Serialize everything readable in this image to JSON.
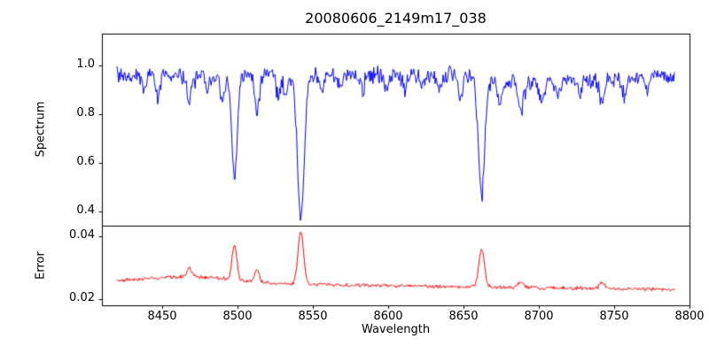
{
  "chart_data": {
    "type": "line",
    "title": "20080606_2149m17_038",
    "xlabel": "Wavelength",
    "xlim": [
      8410,
      8800
    ],
    "x_start": 8420,
    "x_end": 8790,
    "n_points": 700,
    "x_ticks": [
      [
        8450,
        "8450"
      ],
      [
        8500,
        "8500"
      ],
      [
        8550,
        "8550"
      ],
      [
        8600,
        "8600"
      ],
      [
        8650,
        "8650"
      ],
      [
        8700,
        "8700"
      ],
      [
        8750,
        "8750"
      ],
      [
        8800,
        "8800"
      ]
    ],
    "legend": "none",
    "grid": false,
    "panels": [
      {
        "name": "spectrum",
        "ylabel": "Spectrum",
        "color": "#0000ff",
        "ylim": [
          0.34,
          1.13
        ],
        "yticks": [
          [
            0.4,
            "0.4"
          ],
          [
            0.6,
            "0.6"
          ],
          [
            0.8,
            "0.8"
          ],
          [
            1.0,
            "1.0"
          ]
        ],
        "baseline": 0.96,
        "noise_amp": 0.042,
        "continuum_dips": [
          {
            "center": 8470,
            "depth": 0.012,
            "sigma": 20
          },
          {
            "center": 8695,
            "depth": 0.03,
            "sigma": 22
          },
          {
            "center": 8745,
            "depth": 0.018,
            "sigma": 18
          }
        ],
        "absorption_lines": [
          {
            "center": 8438,
            "depth": 0.06,
            "sigma": 1.2
          },
          {
            "center": 8447,
            "depth": 0.08,
            "sigma": 1.3
          },
          {
            "center": 8468,
            "depth": 0.1,
            "sigma": 1.5
          },
          {
            "center": 8480,
            "depth": 0.06,
            "sigma": 1.2
          },
          {
            "center": 8490,
            "depth": 0.1,
            "sigma": 1.3
          },
          {
            "center": 8498,
            "depth": 0.43,
            "sigma": 1.7
          },
          {
            "center": 8513,
            "depth": 0.15,
            "sigma": 1.5
          },
          {
            "center": 8527,
            "depth": 0.09,
            "sigma": 1.4
          },
          {
            "center": 8532,
            "depth": 0.08,
            "sigma": 1.2
          },
          {
            "center": 8542,
            "depth": 0.575,
            "sigma": 2.3
          },
          {
            "center": 8556,
            "depth": 0.08,
            "sigma": 1.3
          },
          {
            "center": 8568,
            "depth": 0.05,
            "sigma": 1.2
          },
          {
            "center": 8583,
            "depth": 0.06,
            "sigma": 1.3
          },
          {
            "center": 8599,
            "depth": 0.05,
            "sigma": 1.2
          },
          {
            "center": 8611,
            "depth": 0.07,
            "sigma": 1.3
          },
          {
            "center": 8623,
            "depth": 0.06,
            "sigma": 1.3
          },
          {
            "center": 8634,
            "depth": 0.07,
            "sigma": 1.4
          },
          {
            "center": 8648,
            "depth": 0.09,
            "sigma": 1.5
          },
          {
            "center": 8662,
            "depth": 0.49,
            "sigma": 2.1
          },
          {
            "center": 8674,
            "depth": 0.1,
            "sigma": 1.6
          },
          {
            "center": 8688,
            "depth": 0.12,
            "sigma": 1.8
          },
          {
            "center": 8702,
            "depth": 0.08,
            "sigma": 1.5
          },
          {
            "center": 8713,
            "depth": 0.06,
            "sigma": 1.3
          },
          {
            "center": 8727,
            "depth": 0.05,
            "sigma": 1.2
          },
          {
            "center": 8742,
            "depth": 0.1,
            "sigma": 1.6
          },
          {
            "center": 8757,
            "depth": 0.07,
            "sigma": 1.4
          },
          {
            "center": 8772,
            "depth": 0.06,
            "sigma": 1.3
          }
        ]
      },
      {
        "name": "error",
        "ylabel": "Error",
        "color": "#ff0000",
        "ylim": [
          0.018,
          0.0435
        ],
        "yticks": [
          [
            0.02,
            "0.02"
          ],
          [
            0.04,
            "0.04"
          ]
        ],
        "baseline_start": 0.0255,
        "baseline_end": 0.023,
        "noise_amp": 0.0007,
        "bumps": [
          {
            "center": 8470,
            "height": 0.002,
            "sigma": 28
          }
        ],
        "spikes": [
          {
            "center": 8468,
            "height": 0.003,
            "sigma": 1.6
          },
          {
            "center": 8498,
            "height": 0.011,
            "sigma": 1.6
          },
          {
            "center": 8513,
            "height": 0.004,
            "sigma": 1.5
          },
          {
            "center": 8542,
            "height": 0.017,
            "sigma": 1.9
          },
          {
            "center": 8662,
            "height": 0.012,
            "sigma": 1.9
          },
          {
            "center": 8688,
            "height": 0.002,
            "sigma": 1.8
          },
          {
            "center": 8742,
            "height": 0.002,
            "sigma": 1.6
          }
        ]
      }
    ]
  }
}
